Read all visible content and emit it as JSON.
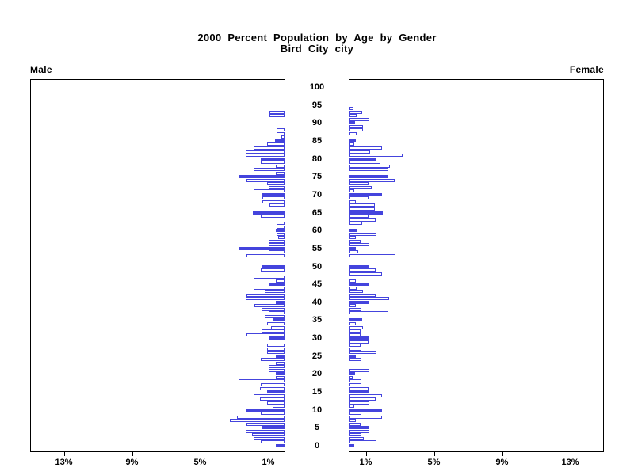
{
  "title": {
    "line1": "2000 Percent Population by Age by Gender",
    "line2": "Bird City city"
  },
  "left_axis_label": "Male",
  "right_axis_label": "Female",
  "colors": {
    "bar_outline": "#4444dd",
    "bar_fill_highlight": "#4444dd",
    "bar_fill_regular": "#ffffff",
    "frame": "#000000",
    "text": "#000000"
  },
  "chart_data": {
    "type": "bar",
    "subtype": "population-pyramid",
    "title": "2000 Percent Population by Age by Gender",
    "subtitle": "Bird City city",
    "age_axis": {
      "min": 0,
      "max": 100,
      "label_step": 5,
      "tick_labels": [
        "0",
        "5",
        "10",
        "15",
        "20",
        "25",
        "30",
        "35",
        "40",
        "45",
        "50",
        "55",
        "60",
        "65",
        "70",
        "75",
        "80",
        "85",
        "90",
        "95",
        "100"
      ]
    },
    "percent_axis": {
      "min": 0,
      "max": 15,
      "tick_values": [
        1,
        5,
        9,
        13
      ],
      "male_tick_labels": [
        "13%",
        "9%",
        "5%",
        "1%"
      ],
      "female_tick_labels": [
        "1%",
        "5%",
        "9%",
        "13%"
      ]
    },
    "highlight_every": 5,
    "series": [
      {
        "name": "Male",
        "side": "left",
        "values_by_age": [
          0.5,
          1.4,
          1.8,
          1.9,
          2.3,
          1.35,
          2.25,
          3.2,
          2.8,
          1.4,
          2.25,
          0.7,
          1.0,
          1.45,
          1.8,
          1.0,
          1.45,
          1.4,
          2.7,
          0.5,
          0.5,
          0.93,
          0.93,
          0.5,
          1.4,
          0.5,
          1.0,
          1.0,
          1.0,
          0,
          0.93,
          2.25,
          1.36,
          0.8,
          1.0,
          0.7,
          1.16,
          0.93,
          1.36,
          1.78,
          0.5,
          2.3,
          2.25,
          1.16,
          1.83,
          0.95,
          0.5,
          1.8,
          0,
          1.4,
          1.3,
          0,
          0,
          2.25,
          0.93,
          2.7,
          0.93,
          0.93,
          0.35,
          0.45,
          0.5,
          0.45,
          0.45,
          0,
          1.4,
          1.85,
          0,
          0.9,
          1.3,
          1.3,
          1.3,
          1.8,
          0.95,
          1.0,
          2.25,
          2.7,
          0.5,
          1.8,
          0.5,
          1.4,
          1.4,
          2.3,
          2.3,
          1.8,
          1.0,
          0.55,
          0.2,
          0.45,
          0.45,
          0,
          0,
          0,
          0.9,
          0.9,
          0,
          0,
          0,
          0,
          0,
          0,
          0
        ]
      },
      {
        "name": "Female",
        "side": "right",
        "values_by_age": [
          0.3,
          1.56,
          0.83,
          0.7,
          1.18,
          1.18,
          0.64,
          0.36,
          1.92,
          0.7,
          1.92,
          0.28,
          1.18,
          1.53,
          1.92,
          1.1,
          1.13,
          0.7,
          0.7,
          0.2,
          0.33,
          1.18,
          0,
          0,
          0.7,
          0.36,
          1.56,
          0.7,
          0.64,
          1.13,
          1.13,
          0.64,
          0.64,
          0.78,
          0.36,
          0.75,
          0,
          2.3,
          0.7,
          0.36,
          1.18,
          2.34,
          1.53,
          0.78,
          0.4,
          1.18,
          0.35,
          0,
          1.92,
          1.53,
          1.18,
          0,
          0,
          2.7,
          0.5,
          0.36,
          1.18,
          0.67,
          0.36,
          1.6,
          0.4,
          0,
          0.75,
          1.53,
          1.13,
          1.94,
          1.5,
          1.5,
          0.36,
          1.13,
          1.9,
          0.3,
          1.3,
          1.13,
          2.66,
          2.27,
          0,
          2.3,
          2.35,
          1.83,
          1.57,
          3.13,
          1.2,
          1.9,
          0.3,
          0.37,
          0,
          0.43,
          0.78,
          0.78,
          0.33,
          1.18,
          0.43,
          0.75,
          0.23,
          0,
          0,
          0,
          0,
          0,
          0
        ]
      }
    ]
  }
}
